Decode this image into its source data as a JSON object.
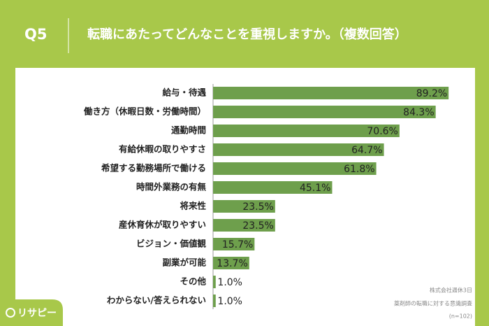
{
  "header": {
    "label": "Q5",
    "title": "転職にあたってどんなことを重視しますか。（複数回答）"
  },
  "chart_data": {
    "type": "bar",
    "orientation": "horizontal",
    "color": "#6e9f4c",
    "categories": [
      "給与・待遇",
      "働き方（休暇日数・労働時間）",
      "通勤時間",
      "有給休暇の取りやすさ",
      "希望する勤務場所で働ける",
      "時間外業務の有無",
      "将来性",
      "産休育休が取りやすい",
      "ビジョン・価値観",
      "副業が可能",
      "その他",
      "わからない/答えられない"
    ],
    "values": [
      89.2,
      84.3,
      70.6,
      64.7,
      61.8,
      45.1,
      23.5,
      23.5,
      15.7,
      13.7,
      1.0,
      1.0
    ],
    "value_labels": [
      "89.2%",
      "84.3%",
      "70.6%",
      "64.7%",
      "61.8%",
      "45.1%",
      "23.5%",
      "23.5%",
      "15.7%",
      "13.7%",
      "1.0%",
      "1.0%"
    ]
  },
  "note": [
    "株式会社週休3日",
    "薬剤師の転職に対する意識調査",
    "(n=102)"
  ],
  "logo": "リサピー"
}
